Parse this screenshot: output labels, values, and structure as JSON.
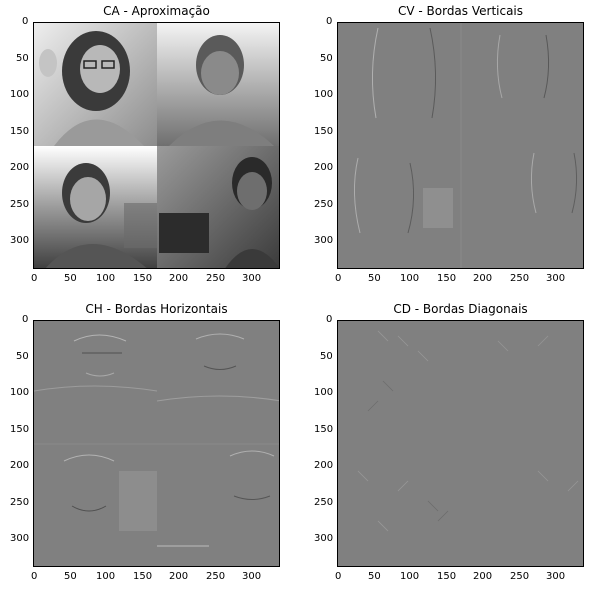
{
  "figure": {
    "panels": [
      {
        "id": "ca",
        "title": "CA - Aproximação",
        "kind": "photo-collage",
        "xticks": [
          "0",
          "50",
          "100",
          "150",
          "200",
          "250",
          "300"
        ],
        "yticks": [
          "0",
          "50",
          "100",
          "150",
          "200",
          "250",
          "300"
        ]
      },
      {
        "id": "cv",
        "title": "CV - Bordas Verticais",
        "kind": "edge-map",
        "xticks": [
          "0",
          "50",
          "100",
          "150",
          "200",
          "250",
          "300"
        ],
        "yticks": [
          "0",
          "50",
          "100",
          "150",
          "200",
          "250",
          "300"
        ]
      },
      {
        "id": "ch",
        "title": "CH - Bordas Horizontais",
        "kind": "edge-map",
        "xticks": [
          "0",
          "50",
          "100",
          "150",
          "200",
          "250",
          "300"
        ],
        "yticks": [
          "0",
          "50",
          "100",
          "150",
          "200",
          "250",
          "300"
        ]
      },
      {
        "id": "cd",
        "title": "CD - Bordas Diagonais",
        "kind": "edge-map",
        "xticks": [
          "0",
          "50",
          "100",
          "150",
          "200",
          "250",
          "300"
        ],
        "yticks": [
          "0",
          "50",
          "100",
          "150",
          "200",
          "250",
          "300"
        ]
      }
    ],
    "image_extent": [
      0,
      340
    ],
    "colors": {
      "edge_background": "#808080",
      "photo_light": "#d9d9d9",
      "photo_dark": "#2a2a2a"
    }
  }
}
